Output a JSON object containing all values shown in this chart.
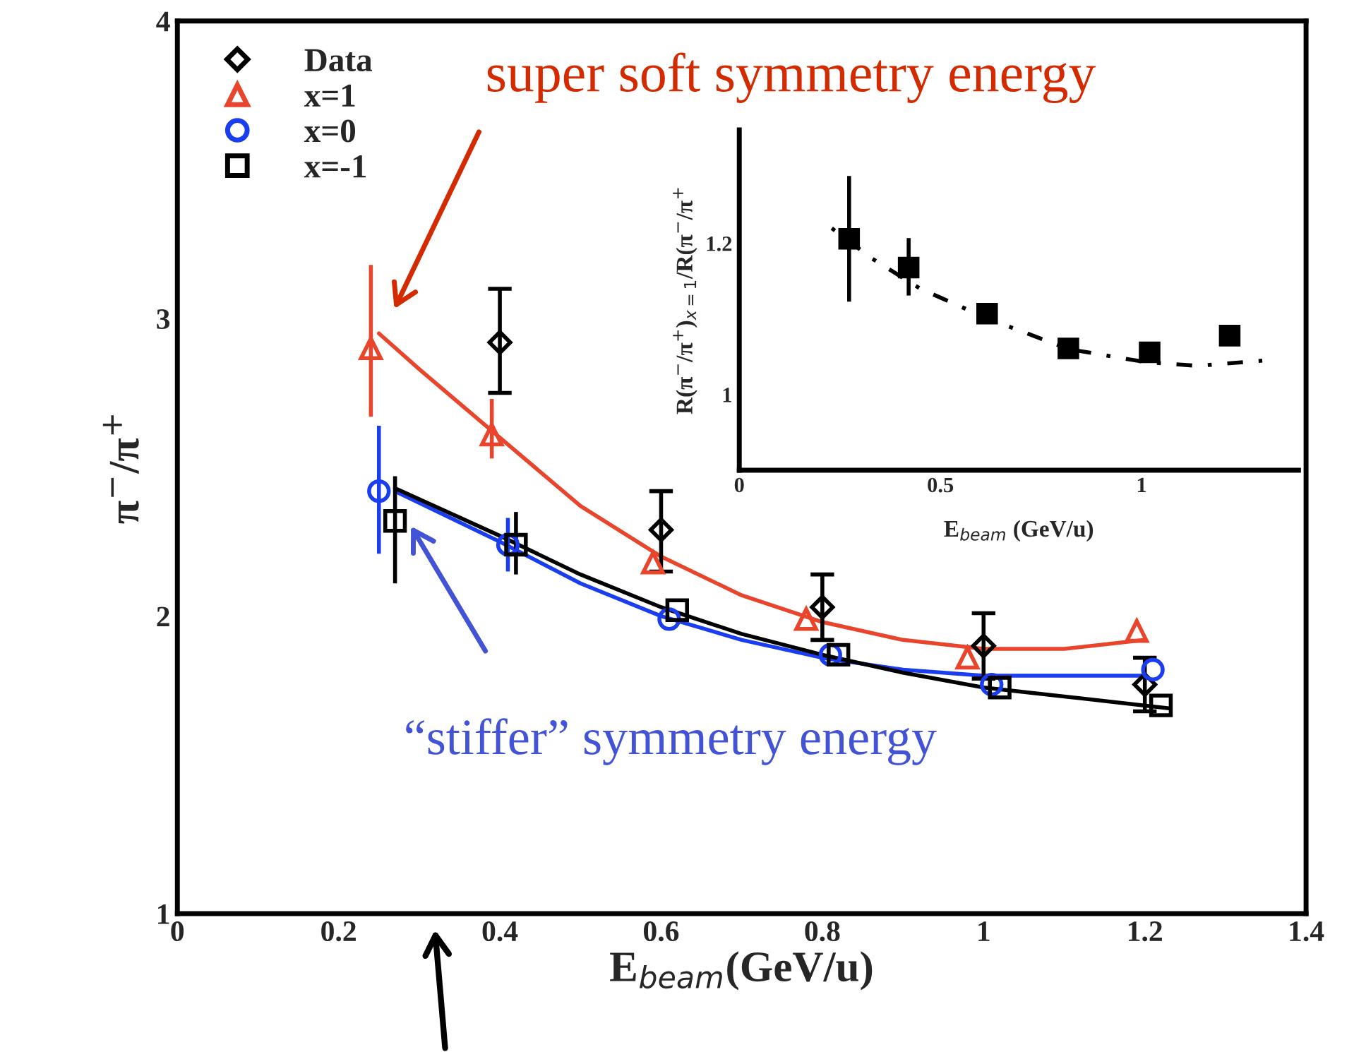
{
  "chart_data": [
    {
      "type": "scatter",
      "xlabel": "E$_{beam}$(GeV/u)",
      "ylabel": "π$^{−}$/π$^{+}$",
      "xlim": [
        0,
        1.4
      ],
      "xticks": [
        0,
        0.2,
        0.4,
        0.6,
        0.8,
        1,
        1.2,
        1.4
      ],
      "ylim": [
        1,
        4
      ],
      "yticks": [
        1,
        2,
        3,
        4
      ],
      "grid": false,
      "legend": "top left",
      "series": [
        {
          "name": "Data",
          "marker": "diamond",
          "color": "#000000",
          "x": [
            0.4,
            0.6,
            0.8,
            1.0,
            1.2
          ],
          "values": [
            2.92,
            2.29,
            2.03,
            1.9,
            1.77
          ],
          "errors": [
            [
              2.75,
              3.1
            ],
            [
              2.15,
              2.42
            ],
            [
              1.92,
              2.14
            ],
            [
              1.79,
              2.01
            ],
            [
              1.68,
              1.86
            ]
          ]
        },
        {
          "name": "x=1",
          "marker": "triangle",
          "color": "#e8452c",
          "x": [
            0.24,
            0.39,
            0.59,
            0.78,
            0.98,
            1.19
          ],
          "values": [
            2.9,
            2.61,
            2.18,
            1.99,
            1.86,
            1.95
          ],
          "errors": [
            [
              2.67,
              3.18
            ],
            [
              2.53,
              2.73
            ],
            null,
            null,
            null,
            null
          ]
        },
        {
          "name": "x=0",
          "marker": "circle",
          "color": "#1a3df0",
          "x": [
            0.25,
            0.41,
            0.61,
            0.81,
            1.01,
            1.21
          ],
          "values": [
            2.42,
            2.24,
            1.99,
            1.87,
            1.77,
            1.82
          ],
          "errors": [
            [
              2.21,
              2.64
            ],
            [
              2.15,
              2.33
            ],
            null,
            null,
            null,
            null
          ]
        },
        {
          "name": "x=-1",
          "marker": "square",
          "color": "#000000",
          "x": [
            0.27,
            0.42,
            0.62,
            0.82,
            1.02,
            1.22
          ],
          "values": [
            2.32,
            2.24,
            2.02,
            1.87,
            1.76,
            1.7
          ],
          "errors": [
            [
              2.11,
              2.47
            ],
            [
              2.14,
              2.35
            ],
            null,
            null,
            null,
            null
          ]
        },
        {
          "type": "line",
          "color": "#e8452c",
          "x": [
            0.25,
            0.3,
            0.4,
            0.5,
            0.6,
            0.7,
            0.8,
            0.9,
            1.0,
            1.1,
            1.2
          ],
          "values": [
            2.95,
            2.83,
            2.6,
            2.37,
            2.2,
            2.07,
            1.98,
            1.92,
            1.89,
            1.89,
            1.92
          ]
        },
        {
          "type": "line",
          "color": "#1a3df0",
          "x": [
            0.27,
            0.4,
            0.5,
            0.6,
            0.7,
            0.8,
            0.9,
            1.0,
            1.1,
            1.2
          ],
          "values": [
            2.42,
            2.25,
            2.11,
            2.0,
            1.92,
            1.86,
            1.82,
            1.8,
            1.8,
            1.8
          ]
        },
        {
          "type": "line",
          "color": "#000000",
          "x": [
            0.27,
            0.4,
            0.5,
            0.6,
            0.7,
            0.8,
            0.9,
            1.0,
            1.1,
            1.23
          ],
          "values": [
            2.43,
            2.27,
            2.14,
            2.03,
            1.94,
            1.87,
            1.81,
            1.76,
            1.73,
            1.69
          ]
        }
      ],
      "annotations": [
        "super soft symmetry energy",
        "“stiffer” symmetry energy"
      ]
    },
    {
      "type": "scatter",
      "xlabel": "E$_{beam}$ (GeV/u)",
      "ylabel": "R(π$^{−}$/π$^{+}$)$_{x=1}$/R(π$^{−}$/π$^{+}$",
      "xlim": [
        0,
        1.39
      ],
      "xticks": [
        0,
        0.5,
        1
      ],
      "ylim": [
        0.9,
        1.35
      ],
      "yticks": [
        1,
        1.2
      ],
      "grid": false,
      "series": [
        {
          "marker": "square",
          "color": "#000000",
          "x": [
            0.273,
            0.421,
            0.616,
            0.818,
            1.02,
            1.219
          ],
          "values": [
            1.206,
            1.168,
            1.107,
            1.061,
            1.056,
            1.078
          ],
          "errors": [
            [
              1.123,
              1.289
            ],
            [
              1.131,
              1.207
            ],
            null,
            null,
            null,
            null
          ]
        },
        {
          "type": "line",
          "line_style": "dotted",
          "color": "#000000",
          "x": [
            0.23,
            0.33,
            0.45,
            0.62,
            0.82,
            1.01,
            1.14,
            1.3
          ],
          "values": [
            1.22,
            1.18,
            1.14,
            1.1,
            1.06,
            1.043,
            1.038,
            1.045
          ]
        }
      ]
    }
  ]
}
